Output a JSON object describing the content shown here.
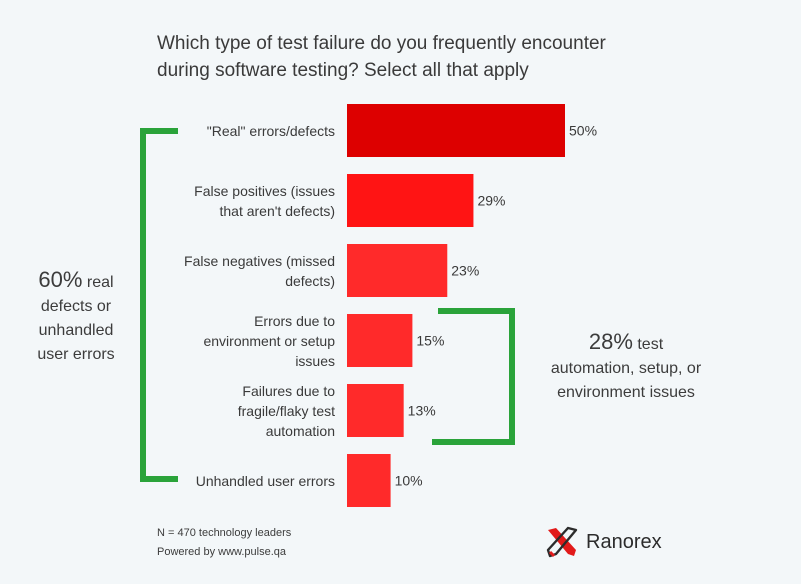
{
  "chart_data": {
    "type": "bar",
    "orientation": "horizontal",
    "title_lines": [
      "Which type of test failure do you frequently encounter",
      "during software testing? Select all that apply"
    ],
    "categories": [
      [
        "\"Real\" errors/defects"
      ],
      [
        "False positives (issues",
        "that aren't defects)"
      ],
      [
        "False negatives (missed",
        "defects)"
      ],
      [
        "Errors due to",
        "environment or setup",
        "issues"
      ],
      [
        "Failures due to",
        "fragile/flaky test",
        "automation"
      ],
      [
        "Unhandled user errors"
      ]
    ],
    "values": [
      50,
      29,
      23,
      15,
      13,
      10
    ],
    "value_labels": [
      "50%",
      "29%",
      "23%",
      "15%",
      "13%",
      "10%"
    ],
    "value_unit": "%",
    "colors": [
      "#dd0000",
      "#ff1414",
      "#ff2a2a",
      "#ff2a2a",
      "#ff2a2a",
      "#ff2a2a"
    ],
    "bracket_color": "#2aa33a",
    "annotations": [
      {
        "pct": "60%",
        "text_lines": [
          "real",
          "defects or",
          "unhandled",
          "user errors"
        ],
        "covers": [
          0,
          5
        ],
        "side": "left"
      },
      {
        "pct": "28%",
        "text_lines": [
          "test",
          "automation, setup, or",
          "environment issues"
        ],
        "covers": [
          3,
          4
        ],
        "side": "right"
      }
    ]
  },
  "footnotes": [
    "N = 470 technology leaders",
    "Powered by www.pulse.qa"
  ],
  "brand": {
    "name": "Ranorex",
    "logo_icon": "ranorex-logo-icon",
    "logo_color": "#e21a1a"
  }
}
